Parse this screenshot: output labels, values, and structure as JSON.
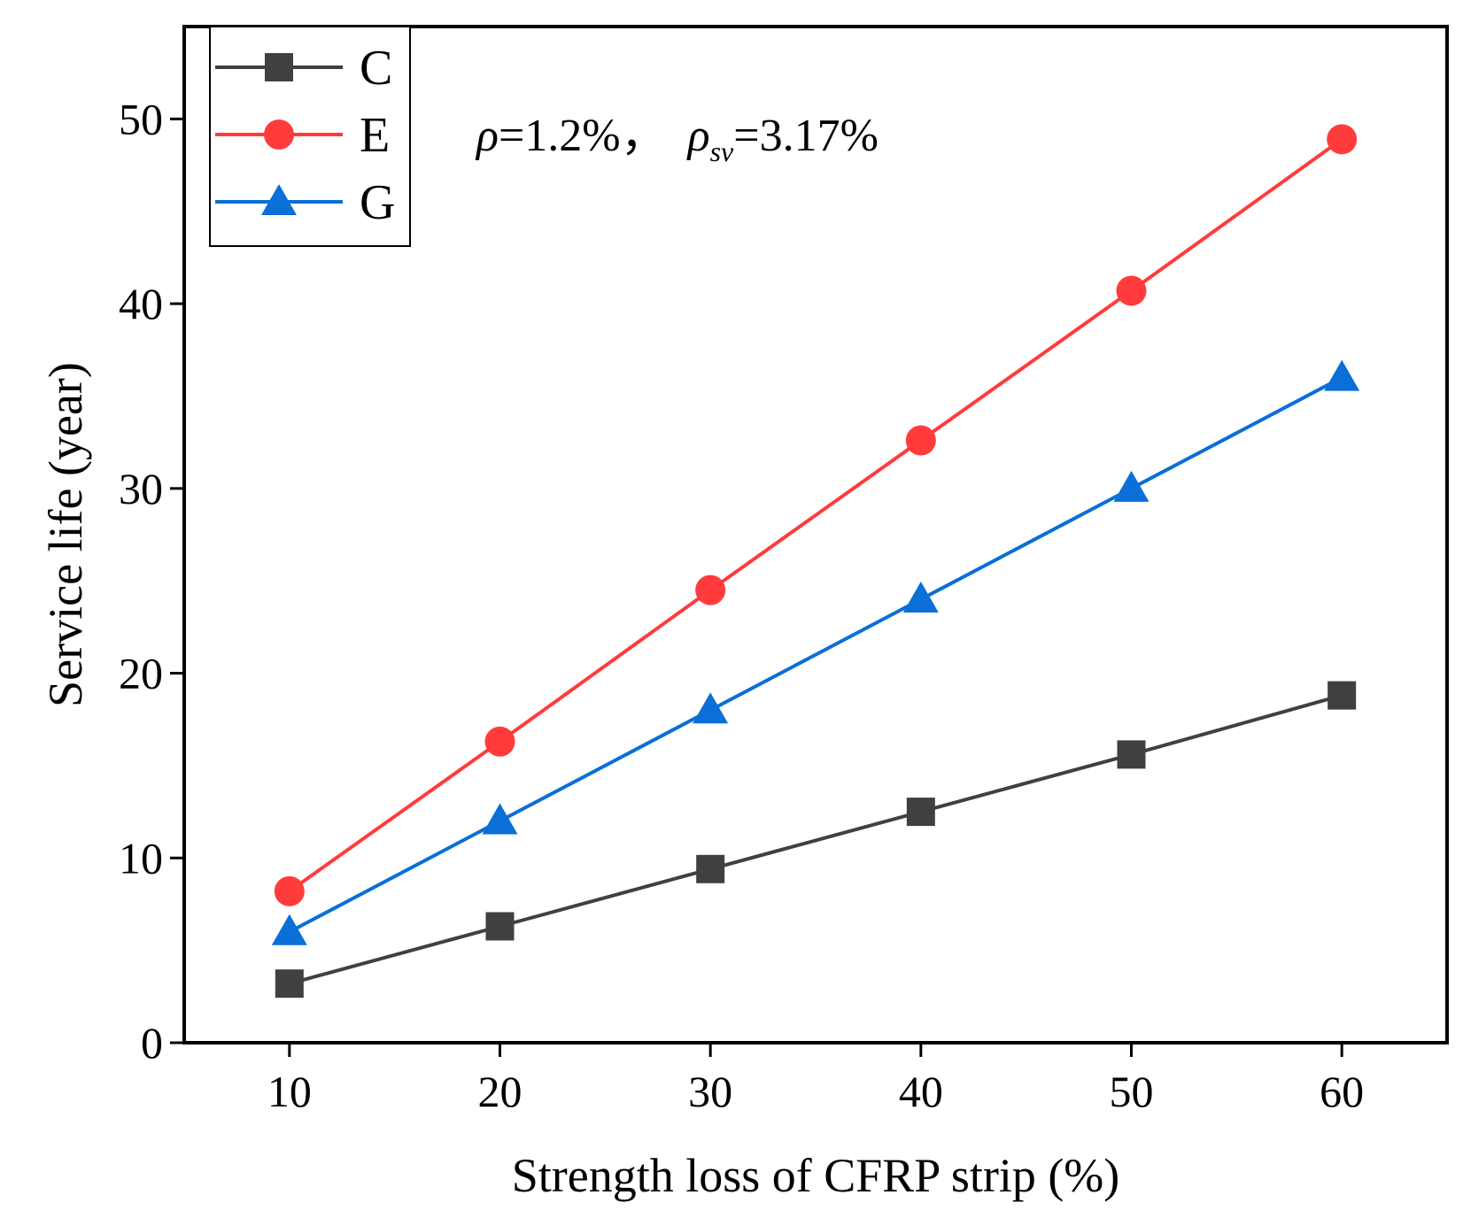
{
  "chart_data": {
    "type": "line",
    "x": [
      10,
      20,
      30,
      40,
      50,
      60
    ],
    "series": [
      {
        "name": "C",
        "color": "#404040",
        "marker": "square",
        "values": [
          3.2,
          6.3,
          9.4,
          12.5,
          15.6,
          18.8
        ]
      },
      {
        "name": "E",
        "color": "#ff3b3b",
        "marker": "circle",
        "values": [
          8.2,
          16.3,
          24.5,
          32.6,
          40.7,
          48.9
        ]
      },
      {
        "name": "G",
        "color": "#0a6fd6",
        "marker": "triangle",
        "values": [
          6.0,
          12.0,
          18.0,
          24.0,
          30.0,
          36.0
        ]
      }
    ],
    "xlabel": "Strength loss of CFRP strip (%)",
    "ylabel": "Service life (year)",
    "xlim": [
      5,
      65
    ],
    "ylim": [
      0,
      55
    ],
    "xticks": [
      10,
      20,
      30,
      40,
      50,
      60
    ],
    "yticks": [
      0,
      10,
      20,
      30,
      40,
      50
    ],
    "legend_position": "top-left",
    "annotation": {
      "rho_symbol": "ρ",
      "rho_value": "=1.2%，",
      "rho_sv_symbol": "ρ",
      "rho_sv_sub": "sv",
      "rho_sv_value": "=3.17%"
    }
  }
}
